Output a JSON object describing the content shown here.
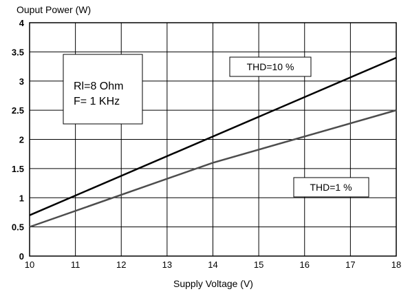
{
  "chart_data": {
    "type": "line",
    "title": "",
    "ylabel": "Ouput Power (W)",
    "xlabel": "Supply Voltage (V)",
    "xlim": [
      10,
      18
    ],
    "ylim": [
      0,
      4
    ],
    "x_ticks": [
      "10",
      "11",
      "12",
      "13",
      "14",
      "15",
      "16",
      "17",
      "18"
    ],
    "y_ticks": [
      "0",
      "0.5",
      "1",
      "1.5",
      "2",
      "2.5",
      "3",
      "3.5",
      "4"
    ],
    "grid": true,
    "series": [
      {
        "name": "THD=10 %",
        "color": "#000000",
        "points": [
          [
            10,
            0.7
          ],
          [
            18,
            3.4
          ]
        ]
      },
      {
        "name": "THD=1 %",
        "color": "#4d4d4d",
        "points": [
          [
            10,
            0.5
          ],
          [
            14,
            1.6
          ],
          [
            18,
            2.5
          ]
        ]
      }
    ],
    "conditions": [
      "Rl=8 Ohm",
      "F= 1 KHz"
    ]
  }
}
